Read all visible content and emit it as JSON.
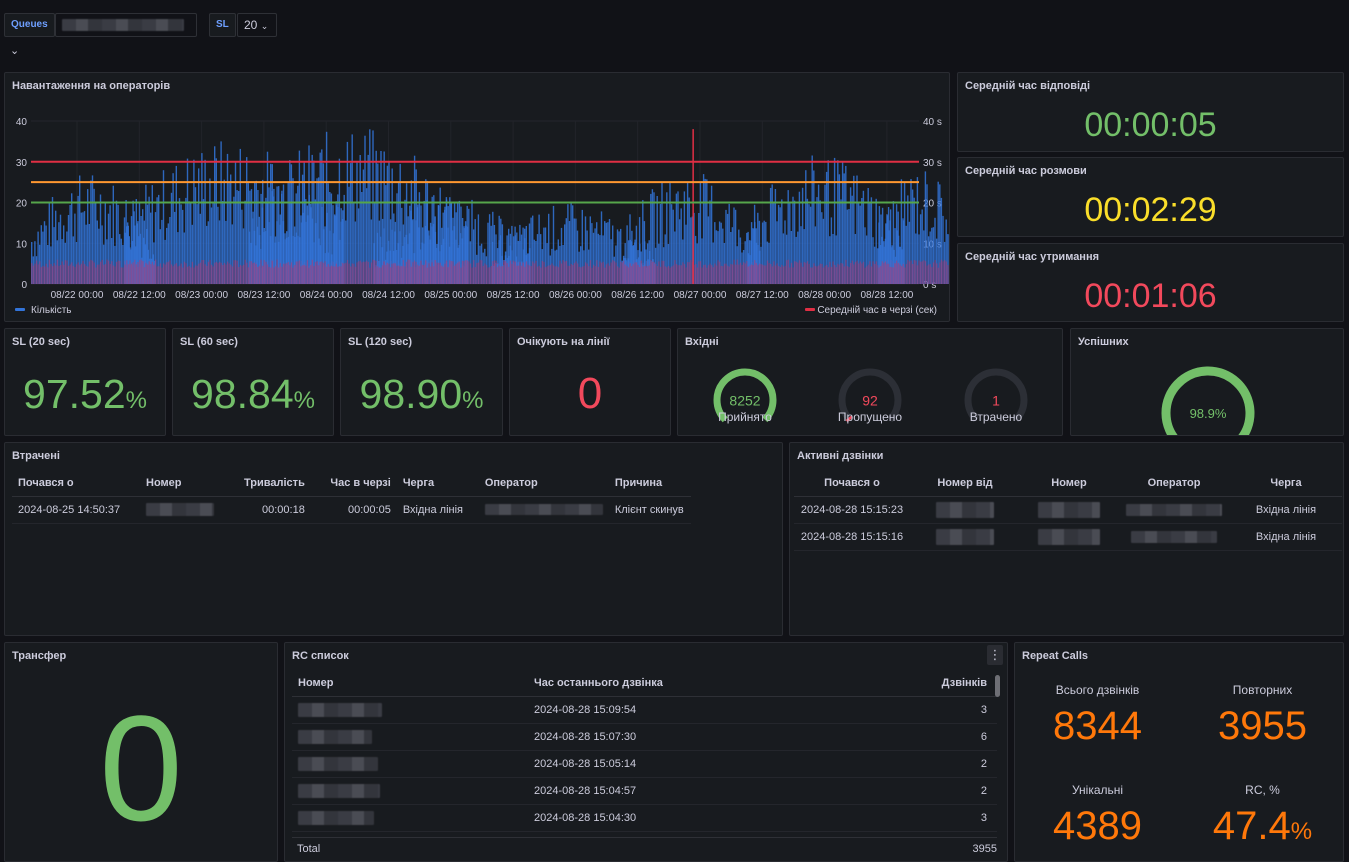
{
  "variables": {
    "queues_label": "Queues",
    "sl_label": "SL",
    "sl_value": "20",
    "collapse_icon": "chevron-down-icon"
  },
  "load_panel": {
    "title": "Навантаження на операторів",
    "y_ticks_left": [
      "40",
      "30",
      "20",
      "10",
      "0"
    ],
    "y_ticks_right": [
      "40 s",
      "30 s",
      "20 s",
      "10 s",
      "0 s"
    ],
    "x_ticks": [
      "08/22 00:00",
      "08/22 12:00",
      "08/23 00:00",
      "08/23 12:00",
      "08/24 00:00",
      "08/24 12:00",
      "08/25 00:00",
      "08/25 12:00",
      "08/26 00:00",
      "08/26 12:00",
      "08/27 00:00",
      "08/27 12:00",
      "08/28 00:00",
      "08/28 12:00"
    ],
    "legend_left": "Кількість",
    "legend_right": "Середній час в черзі (сек)",
    "colors": {
      "count": "#3274d9",
      "wait": "#e02f44",
      "th30": "#e02f44",
      "th25": "#ff9830",
      "th20": "#56a64b"
    }
  },
  "chart_data": {
    "type": "bar",
    "x": [
      "08/22 00:00",
      "08/22 12:00",
      "08/23 00:00",
      "08/23 12:00",
      "08/24 00:00",
      "08/24 12:00",
      "08/25 00:00",
      "08/25 12:00",
      "08/26 00:00",
      "08/26 12:00",
      "08/27 00:00",
      "08/27 12:00",
      "08/28 00:00",
      "08/28 12:00"
    ],
    "series": [
      {
        "name": "Кількість",
        "axis": "left",
        "bursts": [
          [
            0,
            2.0,
            28
          ],
          [
            1.5,
            5.0,
            36
          ],
          [
            3.5,
            7.0,
            39
          ],
          [
            5.5,
            8.0,
            22
          ],
          [
            7.4,
            10.0,
            20
          ],
          [
            9.5,
            11.7,
            28
          ],
          [
            11.5,
            14.0,
            32
          ],
          [
            13.6,
            15.0,
            29
          ]
        ]
      },
      {
        "name": "Середній час в черзі (сек)",
        "axis": "right",
        "peak": {
          "x": 10.5,
          "value": 38
        }
      }
    ],
    "thresholds": [
      30,
      25,
      20
    ],
    "ylim": [
      0,
      40
    ],
    "legend": "bottom"
  },
  "avg_answer": {
    "title": "Середній час відповіді",
    "value": "00:00:05"
  },
  "avg_talk": {
    "title": "Середній час розмови",
    "value": "00:02:29"
  },
  "avg_hold": {
    "title": "Середній час утримання",
    "value": "00:01:06"
  },
  "sl20": {
    "title": "SL (20 sec)",
    "value": "97.52",
    "unit": "%"
  },
  "sl60": {
    "title": "SL (60 sec)",
    "value": "98.84",
    "unit": "%"
  },
  "sl120": {
    "title": "SL (120 sec)",
    "value": "98.90",
    "unit": "%"
  },
  "waiting": {
    "title": "Очікують на лінії",
    "value": "0"
  },
  "incoming": {
    "title": "Вхідні",
    "gauges": [
      {
        "label": "Прийнято",
        "value": "8252",
        "fraction": 1.0,
        "color": "#73bf69"
      },
      {
        "label": "Пропущено",
        "value": "92",
        "fraction": 0.02,
        "color": "#f2495c"
      },
      {
        "label": "Втрачено",
        "value": "1",
        "fraction": 0.0,
        "color": "#f2495c"
      }
    ]
  },
  "success": {
    "title": "Успішних",
    "value": "98.9%",
    "fraction": 0.989,
    "color": "#73bf69"
  },
  "lost": {
    "title": "Втрачені",
    "columns": [
      "Почався о",
      "Номер",
      "Тривалість",
      "Час в черзі",
      "Черга",
      "Оператор",
      "Причина"
    ],
    "rows": [
      {
        "start": "2024-08-25 14:50:37",
        "duration": "00:00:18",
        "queue_time": "00:00:05",
        "queue": "Вхідна лінія",
        "reason": "Клієнт скинув"
      }
    ]
  },
  "active": {
    "title": "Активні дзвінки",
    "columns": [
      "Почався о",
      "Номер від",
      "Номер",
      "Оператор",
      "Черга"
    ],
    "rows": [
      {
        "start": "2024-08-28 15:15:23",
        "queue": "Вхідна лінія"
      },
      {
        "start": "2024-08-28 15:15:16",
        "queue": "Вхідна лінія"
      }
    ]
  },
  "transfer": {
    "title": "Трансфер",
    "value": "0"
  },
  "rc_list": {
    "title": "RC список",
    "columns": [
      "Номер",
      "Час останнього дзвінка",
      "Дзвінків"
    ],
    "rows": [
      {
        "time": "2024-08-28 15:09:54",
        "count": "3"
      },
      {
        "time": "2024-08-28 15:07:30",
        "count": "6"
      },
      {
        "time": "2024-08-28 15:05:14",
        "count": "2"
      },
      {
        "time": "2024-08-28 15:04:57",
        "count": "2"
      },
      {
        "time": "2024-08-28 15:04:30",
        "count": "3"
      }
    ],
    "total_label": "Total",
    "total_value": "3955",
    "menu_icon": "kebab-menu-icon"
  },
  "repeat": {
    "title": "Repeat Calls",
    "all_label": "Всього дзвінків",
    "all_value": "8344",
    "rep_label": "Повторних",
    "rep_value": "3955",
    "uniq_label": "Унікальні",
    "uniq_value": "4389",
    "rc_label": "RC, %",
    "rc_value": "47.4",
    "rc_unit": "%"
  }
}
